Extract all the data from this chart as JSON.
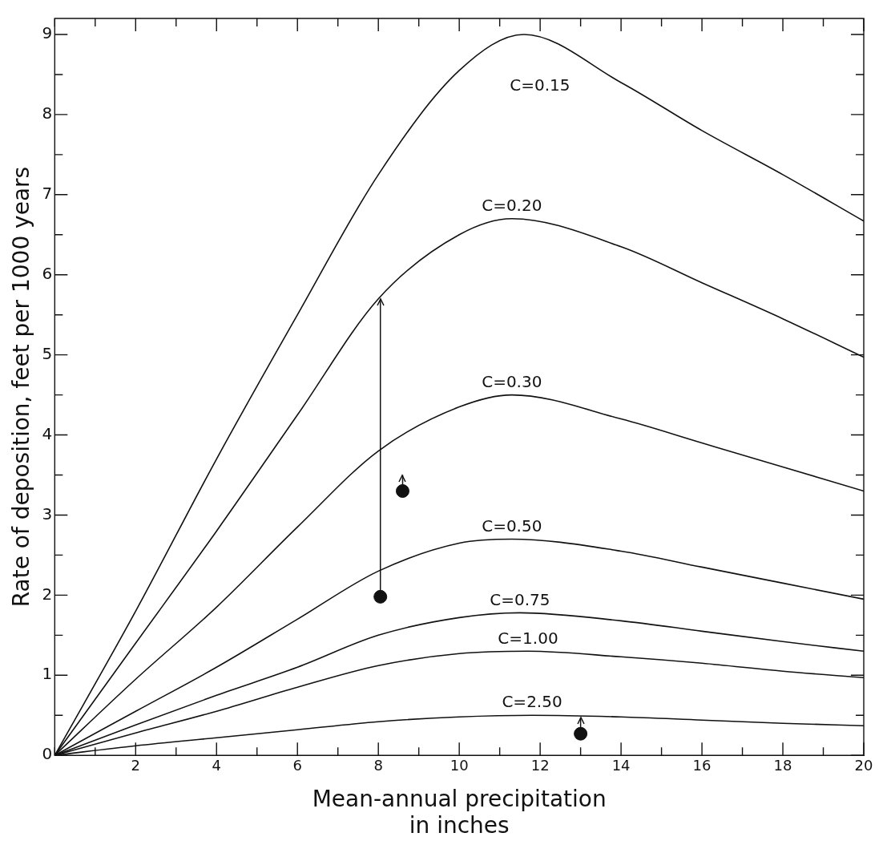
{
  "chart_data": {
    "type": "line",
    "xlabel": "Mean-annual precipitation\nin inches",
    "ylabel": "Rate of deposition, feet per 1000 years",
    "xlim": [
      0,
      20
    ],
    "ylim": [
      0,
      9.2
    ],
    "xticks": [
      {
        "value": 0,
        "label": null
      },
      {
        "value": 1,
        "label": null
      },
      2,
      {
        "value": 3,
        "label": null
      },
      4,
      {
        "value": 5,
        "label": null
      },
      6,
      {
        "value": 7,
        "label": null
      },
      8,
      {
        "value": 9,
        "label": null
      },
      10,
      {
        "value": 11,
        "label": null
      },
      12,
      {
        "value": 13,
        "label": null
      },
      14,
      {
        "value": 15,
        "label": null
      },
      16,
      {
        "value": 17,
        "label": null
      },
      18,
      {
        "value": 19,
        "label": null
      },
      20
    ],
    "yticks": [
      0,
      {
        "value": 0.5,
        "label": null
      },
      1,
      {
        "value": 1.5,
        "label": null
      },
      2,
      {
        "value": 2.5,
        "label": null
      },
      3,
      {
        "value": 3.5,
        "label": null
      },
      4,
      {
        "value": 4.5,
        "label": null
      },
      5,
      {
        "value": 5.5,
        "label": null
      },
      6,
      {
        "value": 6.5,
        "label": null
      },
      7,
      {
        "value": 7.5,
        "label": null
      },
      8,
      {
        "value": 8.5,
        "label": null
      },
      9
    ],
    "grid": false,
    "legend": false,
    "marker": "none",
    "line_style": "solid",
    "series": [
      {
        "name": "C=0.15",
        "color": "#111111",
        "x": [
          0,
          2,
          4,
          6,
          8,
          10,
          11.6,
          14,
          16,
          18,
          20
        ],
        "values": [
          0,
          1.8,
          3.7,
          5.5,
          7.25,
          8.55,
          9.0,
          8.4,
          7.8,
          7.25,
          6.67
        ]
      },
      {
        "name": "C=0.20",
        "color": "#111111",
        "x": [
          0,
          2,
          4,
          6,
          8,
          10,
          11.3,
          14,
          16,
          18,
          20
        ],
        "values": [
          0,
          1.4,
          2.8,
          4.25,
          5.7,
          6.5,
          6.7,
          6.35,
          5.9,
          5.45,
          4.97
        ]
      },
      {
        "name": "C=0.30",
        "color": "#111111",
        "x": [
          0,
          2,
          4,
          6,
          8,
          10,
          11.3,
          14,
          16,
          18,
          20
        ],
        "values": [
          0,
          0.95,
          1.85,
          2.85,
          3.8,
          4.35,
          4.5,
          4.2,
          3.9,
          3.6,
          3.3
        ]
      },
      {
        "name": "C=0.50",
        "color": "#111111",
        "x": [
          0,
          2,
          4,
          6,
          8,
          10,
          11.3,
          14,
          16,
          18,
          20
        ],
        "values": [
          0,
          0.55,
          1.1,
          1.7,
          2.3,
          2.65,
          2.7,
          2.55,
          2.35,
          2.15,
          1.95
        ]
      },
      {
        "name": "C=0.75",
        "color": "#111111",
        "x": [
          0,
          2,
          4,
          6,
          8,
          10,
          11.5,
          14,
          16,
          18,
          20
        ],
        "values": [
          0,
          0.38,
          0.75,
          1.1,
          1.5,
          1.72,
          1.78,
          1.68,
          1.55,
          1.42,
          1.3
        ]
      },
      {
        "name": "C=1.00",
        "color": "#111111",
        "x": [
          0,
          2,
          4,
          6,
          8,
          10,
          11.7,
          14,
          16,
          18,
          20
        ],
        "values": [
          0,
          0.28,
          0.55,
          0.85,
          1.12,
          1.27,
          1.3,
          1.23,
          1.15,
          1.05,
          0.97
        ]
      },
      {
        "name": "C=2.50",
        "color": "#111111",
        "x": [
          0,
          2,
          4,
          6,
          8,
          10,
          11.8,
          14,
          16,
          18,
          20
        ],
        "values": [
          0,
          0.12,
          0.22,
          0.32,
          0.42,
          0.48,
          0.5,
          0.48,
          0.44,
          0.4,
          0.37
        ]
      },
      {
        "type": "scatter",
        "marker": "circle",
        "color": "#111111",
        "x": [
          8.05,
          8.6,
          13
        ],
        "values": [
          1.98,
          3.3,
          0.27
        ],
        "errors": [
          [
            1.98,
            5.7
          ],
          [
            3.3,
            3.5
          ],
          [
            0.27,
            0.47
          ]
        ]
      }
    ]
  }
}
